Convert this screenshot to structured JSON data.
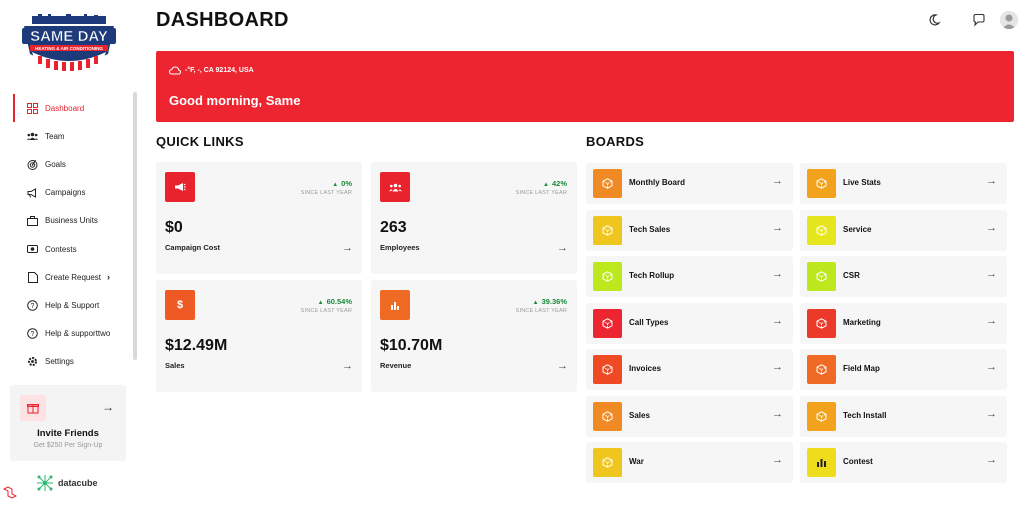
{
  "app": {
    "logo_text": "SAME DAY",
    "logo_subtext": "HEATING & AIR CONDITIONING"
  },
  "sidebar": {
    "items": [
      {
        "label": "Dashboard",
        "icon": "dashboard-icon",
        "active": true
      },
      {
        "label": "Team",
        "icon": "team-icon"
      },
      {
        "label": "Goals",
        "icon": "goals-icon"
      },
      {
        "label": "Campaigns",
        "icon": "megaphone-icon"
      },
      {
        "label": "Business Units",
        "icon": "briefcase-icon"
      },
      {
        "label": "Contests",
        "icon": "contests-icon"
      },
      {
        "label": "Create Request",
        "icon": "request-icon",
        "has_submenu": true
      },
      {
        "label": "Help & Support",
        "icon": "help-icon"
      },
      {
        "label": "Help & supporttwo",
        "icon": "help-icon"
      },
      {
        "label": "Settings",
        "icon": "gear-icon"
      }
    ],
    "invite": {
      "title": "Invite Friends",
      "subtitle": "Get $250 Per Sign-Up"
    },
    "brand": "datacube"
  },
  "header": {
    "title": "DASHBOARD"
  },
  "banner": {
    "location": "-°F, -, CA 92124, USA",
    "greeting": "Good morning, Same",
    "color": "#ec2530"
  },
  "quick_links": {
    "title": "QUICK LINKS",
    "since_label": "SINCE LAST YEAR",
    "cards": [
      {
        "value": "$0",
        "label": "Campaign Cost",
        "delta": "0%",
        "color": "#e8232e",
        "icon": "megaphone-icon"
      },
      {
        "value": "263",
        "label": "Employees",
        "delta": "42%",
        "color": "#e8232e",
        "icon": "team-icon"
      },
      {
        "value": "$12.49M",
        "label": "Sales",
        "delta": "60.54%",
        "color": "#ef5a24",
        "icon": "dollar-icon"
      },
      {
        "value": "$10.70M",
        "label": "Revenue",
        "delta": "39.36%",
        "color": "#ef6b24",
        "icon": "bar-chart-icon"
      }
    ]
  },
  "boards": {
    "title": "BOARDS",
    "items": [
      {
        "label": "Monthly Board",
        "color": "#ef8a24",
        "icon": "cube-icon"
      },
      {
        "label": "Live Stats",
        "color": "#f2a21d",
        "icon": "cube-icon"
      },
      {
        "label": "Tech Sales",
        "color": "#efc61d",
        "icon": "cube-icon"
      },
      {
        "label": "Service",
        "color": "#e6e61e",
        "icon": "cube-icon"
      },
      {
        "label": "Tech Rollup",
        "color": "#bde81e",
        "icon": "cube-icon"
      },
      {
        "label": "CSR",
        "color": "#bde81e",
        "icon": "cube-icon"
      },
      {
        "label": "Call Types",
        "color": "#ec2530",
        "icon": "cube-icon"
      },
      {
        "label": "Marketing",
        "color": "#ec3a2a",
        "icon": "cube-icon"
      },
      {
        "label": "Invoices",
        "color": "#ef4a24",
        "icon": "cube-icon"
      },
      {
        "label": "Field Map",
        "color": "#ef6a24",
        "icon": "cube-icon"
      },
      {
        "label": "Sales",
        "color": "#ef8a24",
        "icon": "cube-icon"
      },
      {
        "label": "Tech Install",
        "color": "#f2a21d",
        "icon": "cube-icon"
      },
      {
        "label": "War",
        "color": "#efc61d",
        "icon": "cube-icon"
      },
      {
        "label": "Contest",
        "color": "#efdc1d",
        "icon": "trophy-bars-icon"
      }
    ]
  }
}
